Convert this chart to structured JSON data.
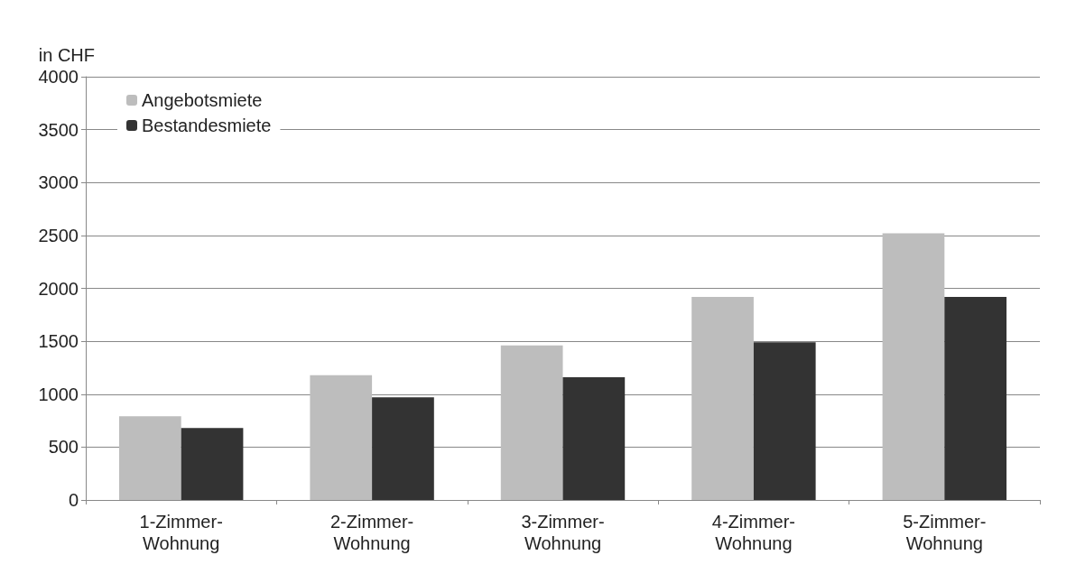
{
  "chart_data": {
    "type": "bar",
    "ylabel": "in CHF",
    "categories": [
      "1-Zimmer-\nWohnung",
      "2-Zimmer-\nWohnung",
      "3-Zimmer-\nWohnung",
      "4-Zimmer-\nWohnung",
      "5-Zimmer-\nWohnung"
    ],
    "series": [
      {
        "name": "Angebotsmiete",
        "color": "#bdbdbd",
        "values": [
          790,
          1180,
          1460,
          1920,
          2520
        ]
      },
      {
        "name": "Bestandesmiete",
        "color": "#333333",
        "values": [
          680,
          970,
          1160,
          1490,
          1920
        ]
      }
    ],
    "ylim": [
      0,
      4000
    ],
    "yticks": [
      0,
      500,
      1000,
      1500,
      2000,
      2500,
      3000,
      3500,
      4000
    ],
    "grid": "y",
    "legend": "top left"
  }
}
